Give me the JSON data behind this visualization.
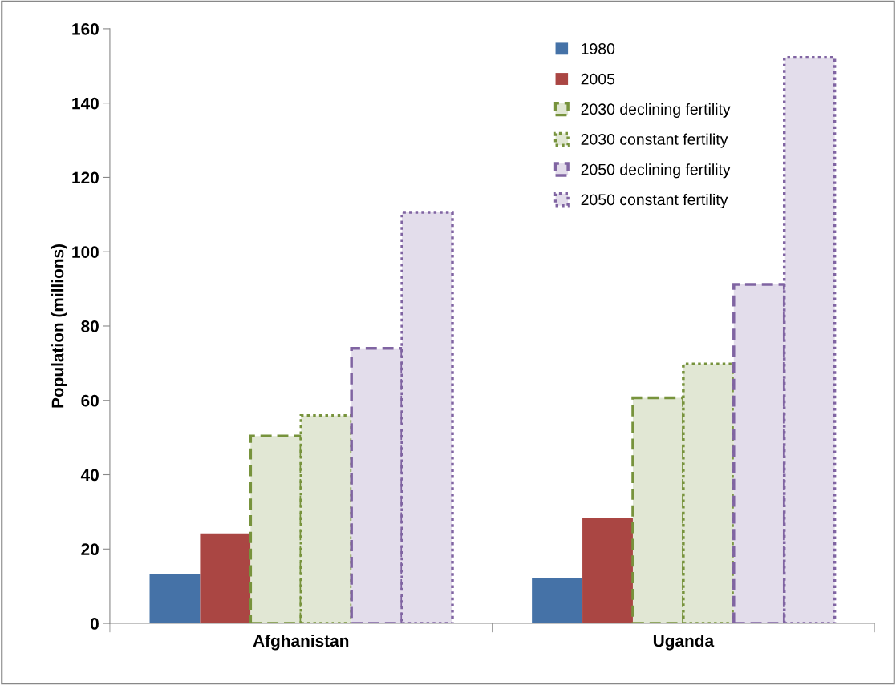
{
  "chart_data": {
    "type": "bar",
    "ylabel": "Population (millions)",
    "categories": [
      "Afghanistan",
      "Uganda"
    ],
    "series": [
      {
        "name": "1980",
        "color": "#4572a7",
        "values": [
          13.4,
          12.3
        ]
      },
      {
        "name": "2005",
        "color": "#aa4643",
        "values": [
          24.2,
          28.3
        ]
      },
      {
        "name": "2030 declining fertility",
        "color": "#77933c",
        "line_style": "dashed",
        "values": [
          50.4,
          60.7
        ]
      },
      {
        "name": "2030 constant fertility",
        "color": "#77933c",
        "line_style": "dotted",
        "values": [
          55.9,
          69.8
        ]
      },
      {
        "name": "2050 declining fertility",
        "color": "#8064a2",
        "line_style": "dashed",
        "values": [
          74.0,
          91.2
        ]
      },
      {
        "name": "2050 constant fertility",
        "color": "#8064a2",
        "line_style": "dotted",
        "values": [
          110.6,
          152.3
        ]
      }
    ],
    "ylim": [
      0,
      160
    ],
    "yticks": [
      0,
      20,
      40,
      60,
      80,
      100,
      120,
      140,
      160
    ],
    "grid": false,
    "legend": "top right"
  }
}
